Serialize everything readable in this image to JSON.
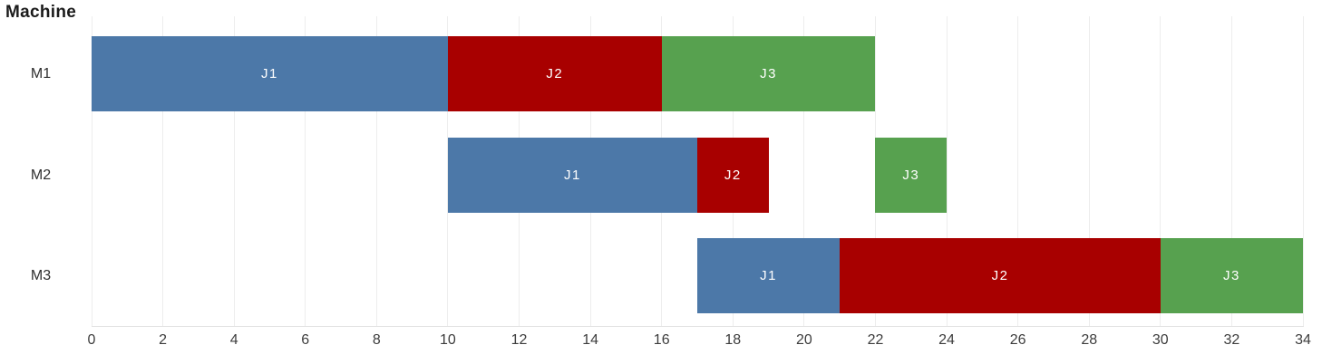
{
  "y_axis_title": "Machine",
  "colors": {
    "background": "#ffffff",
    "grid": "#ededed",
    "axis_line": "#e2e2e2",
    "tick_label": "#3d3d3d",
    "row_label": "#2e2e2e",
    "title": "#1b1b1b",
    "bar_label": "#ffffff",
    "J1": "#4c78a8",
    "J2": "#a80000",
    "J3": "#57a14f"
  },
  "chart_data": {
    "type": "bar",
    "subtype": "gantt-schedule",
    "title": "Machine",
    "orientation": "horizontal",
    "grid": true,
    "legend": false,
    "y_categories": [
      "M1",
      "M2",
      "M3"
    ],
    "jobs": [
      "J1",
      "J2",
      "J3"
    ],
    "x_axis": {
      "min": 0,
      "max": 34,
      "tick_step": 2,
      "ticks": [
        0,
        2,
        4,
        6,
        8,
        10,
        12,
        14,
        16,
        18,
        20,
        22,
        24,
        26,
        28,
        30,
        32,
        34
      ]
    },
    "segments": [
      {
        "machine": "M1",
        "job": "J1",
        "start": 0,
        "end": 10
      },
      {
        "machine": "M1",
        "job": "J2",
        "start": 10,
        "end": 16
      },
      {
        "machine": "M1",
        "job": "J3",
        "start": 16,
        "end": 22
      },
      {
        "machine": "M2",
        "job": "J1",
        "start": 10,
        "end": 17
      },
      {
        "machine": "M2",
        "job": "J2",
        "start": 17,
        "end": 19
      },
      {
        "machine": "M2",
        "job": "J3",
        "start": 22,
        "end": 24
      },
      {
        "machine": "M3",
        "job": "J1",
        "start": 17,
        "end": 21
      },
      {
        "machine": "M3",
        "job": "J2",
        "start": 21,
        "end": 30
      },
      {
        "machine": "M3",
        "job": "J3",
        "start": 30,
        "end": 34
      }
    ]
  }
}
